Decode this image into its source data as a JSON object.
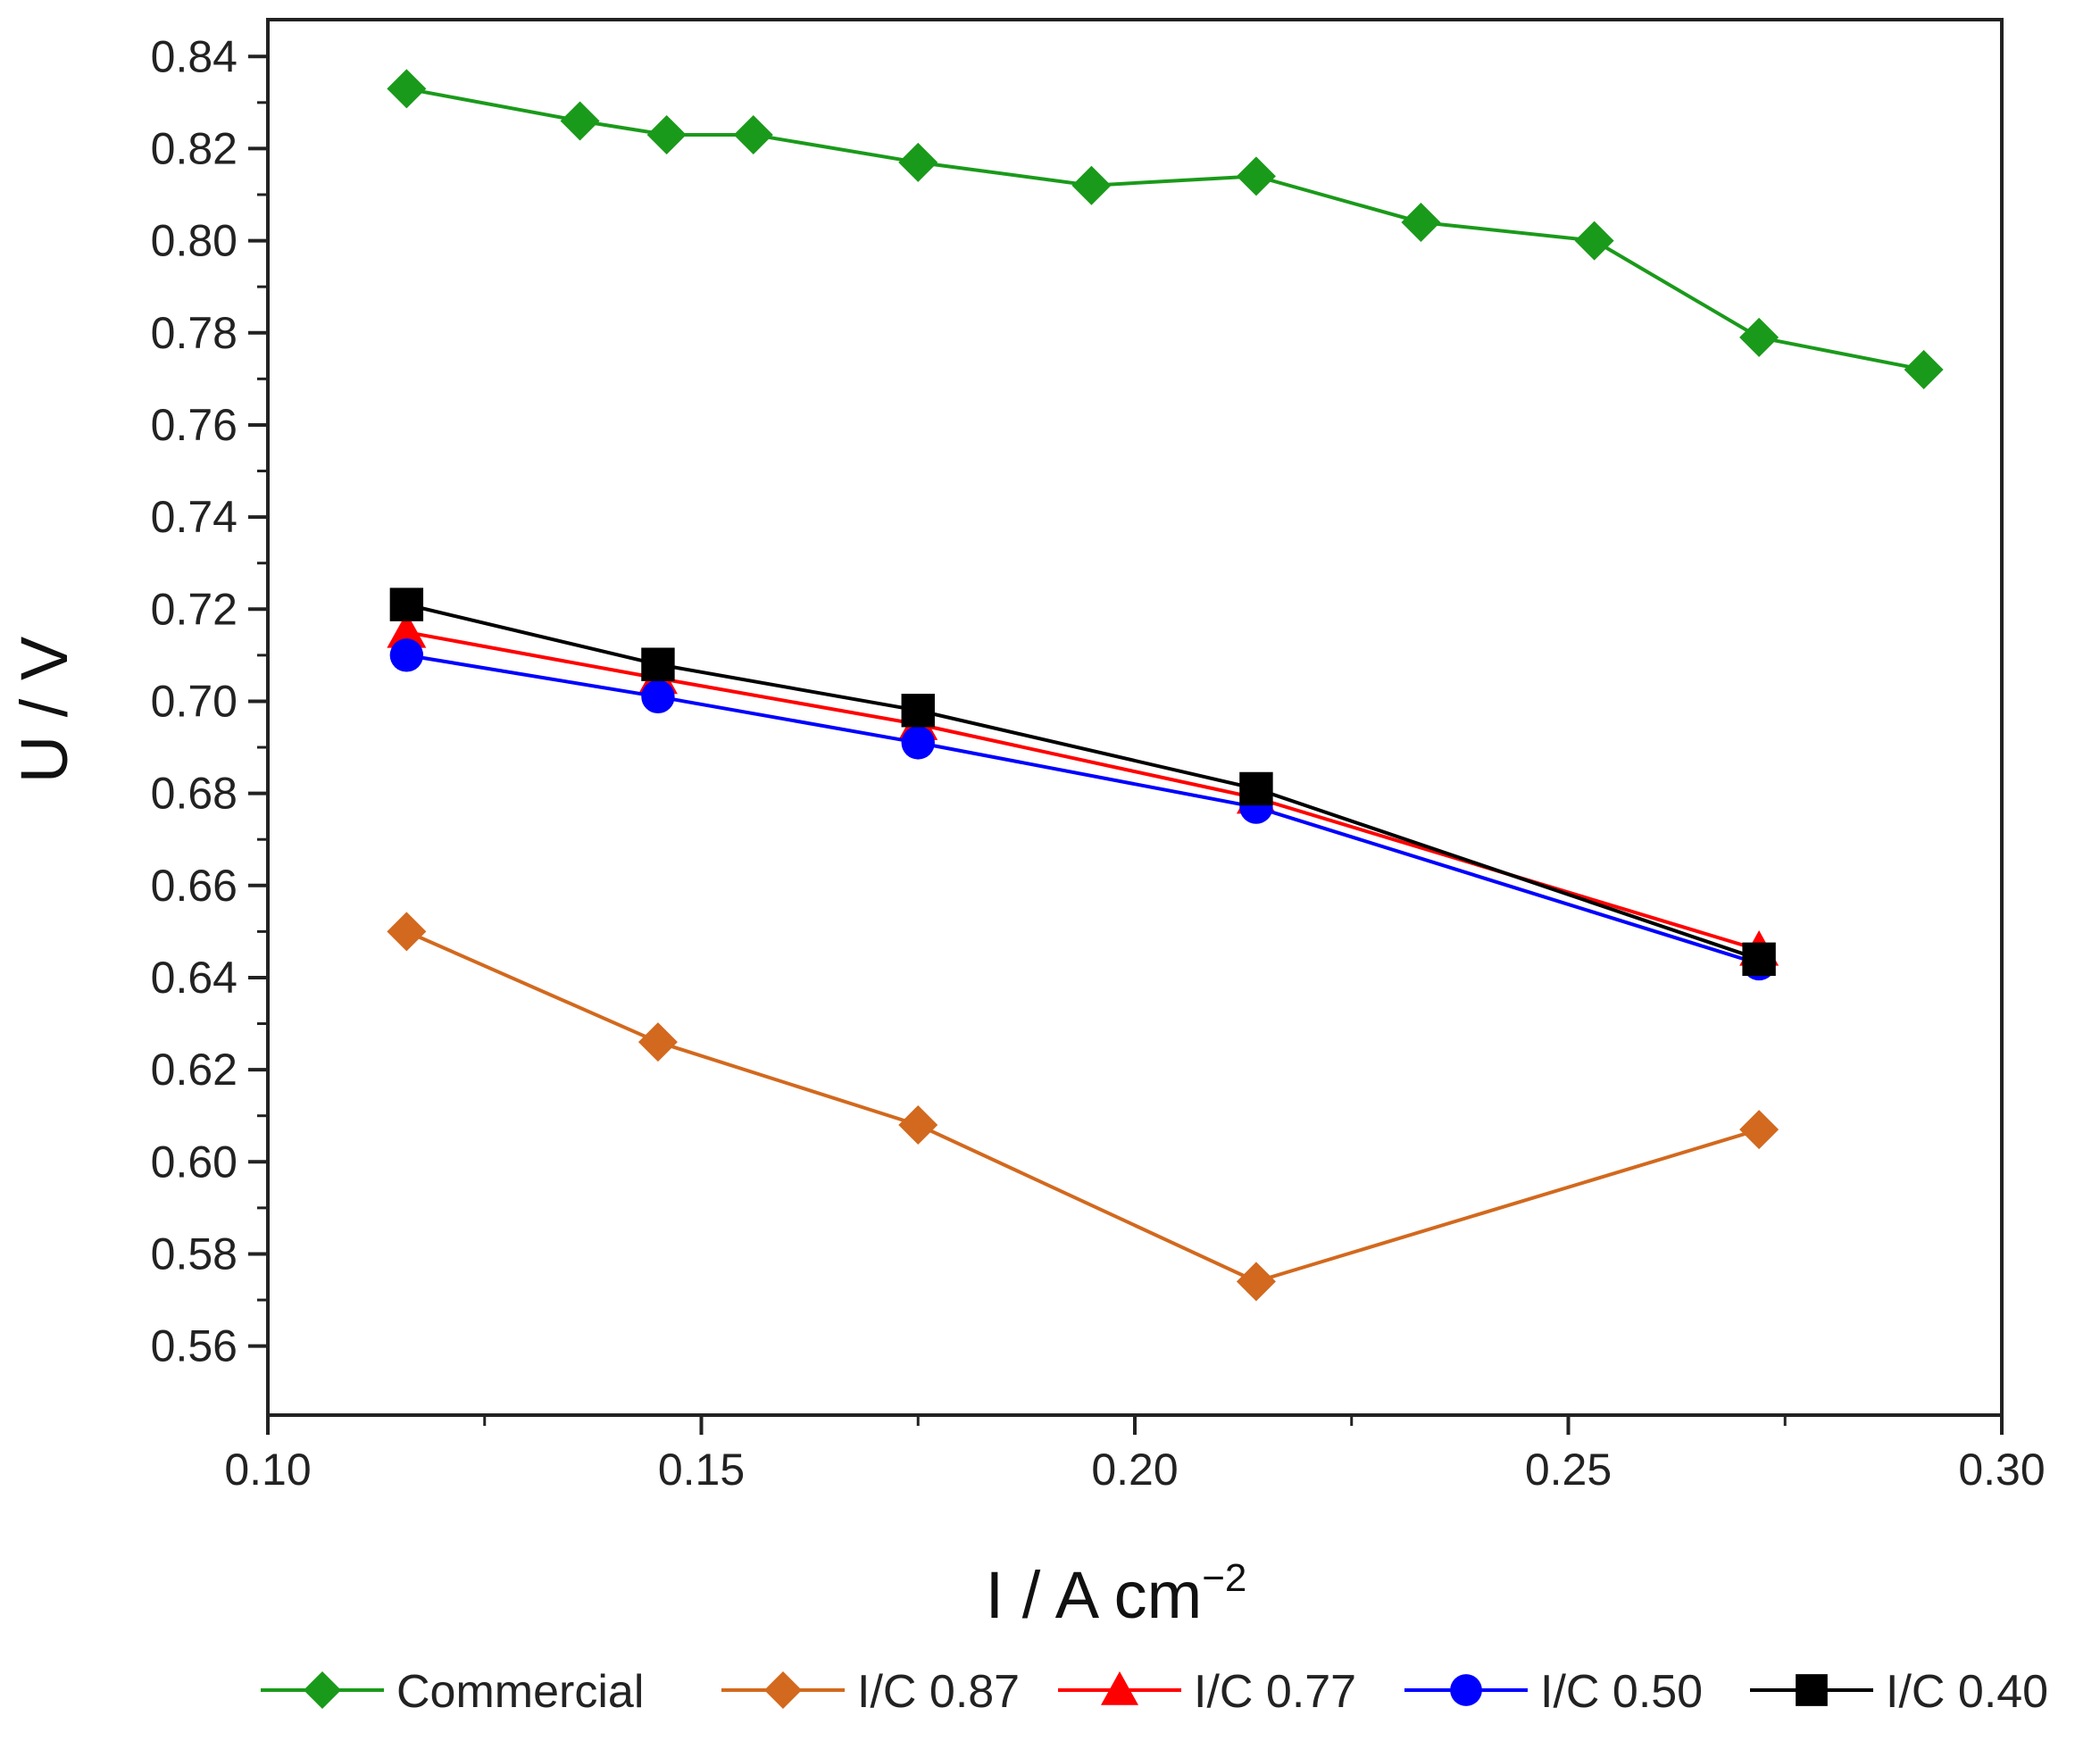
{
  "chart_data": {
    "type": "line",
    "title": "",
    "xlabel": "I / A cm",
    "xlabel_sup": "−2",
    "ylabel": "U / V",
    "xlim": [
      0.1,
      0.3
    ],
    "ylim": [
      0.545,
      0.848
    ],
    "xticks": [
      0.1,
      0.15,
      0.2,
      0.25,
      0.3
    ],
    "xtick_labels": [
      "0.10",
      "0.15",
      "0.20",
      "0.25",
      "0.30"
    ],
    "yticks": [
      0.56,
      0.58,
      0.6,
      0.62,
      0.64,
      0.66,
      0.68,
      0.7,
      0.72,
      0.74,
      0.76,
      0.78,
      0.8,
      0.82,
      0.84
    ],
    "ytick_labels": [
      "0.56",
      "0.58",
      "0.60",
      "0.62",
      "0.64",
      "0.66",
      "0.68",
      "0.70",
      "0.72",
      "0.74",
      "0.76",
      "0.78",
      "0.80",
      "0.82",
      "0.84"
    ],
    "grid": false,
    "legend_position": "bottom",
    "series": [
      {
        "name": "Commercial",
        "color": "#1a9a1a",
        "marker": "diamond",
        "x": [
          0.116,
          0.136,
          0.146,
          0.156,
          0.175,
          0.195,
          0.214,
          0.233,
          0.253,
          0.272,
          0.291
        ],
        "y": [
          0.833,
          0.826,
          0.823,
          0.823,
          0.817,
          0.812,
          0.814,
          0.804,
          0.8,
          0.779,
          0.772
        ]
      },
      {
        "name": "I/C 0.87",
        "color": "#d2691e",
        "marker": "diamond",
        "x": [
          0.116,
          0.145,
          0.175,
          0.214,
          0.272
        ],
        "y": [
          0.65,
          0.626,
          0.608,
          0.574,
          0.607
        ]
      },
      {
        "name": "I/C 0.77",
        "color": "#ff0000",
        "marker": "triangle",
        "x": [
          0.116,
          0.145,
          0.175,
          0.214,
          0.272
        ],
        "y": [
          0.715,
          0.705,
          0.695,
          0.679,
          0.646
        ]
      },
      {
        "name": "I/C 0.50",
        "color": "#0000ff",
        "marker": "circle",
        "x": [
          0.116,
          0.145,
          0.175,
          0.214,
          0.272
        ],
        "y": [
          0.71,
          0.701,
          0.691,
          0.677,
          0.643
        ]
      },
      {
        "name": "I/C 0.40",
        "color": "#000000",
        "marker": "square",
        "x": [
          0.116,
          0.145,
          0.175,
          0.214,
          0.272
        ],
        "y": [
          0.721,
          0.708,
          0.698,
          0.681,
          0.644
        ]
      }
    ]
  }
}
